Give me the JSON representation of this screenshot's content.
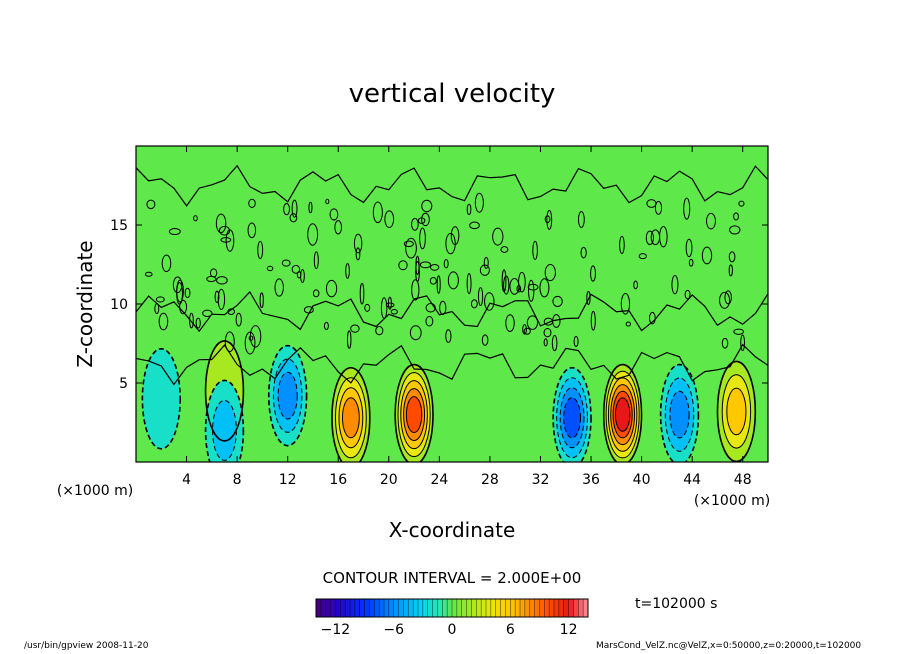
{
  "chart_data": {
    "type": "heatmap",
    "title": "vertical velocity",
    "xlabel": "X-coordinate",
    "ylabel": "Z-coordinate",
    "x_unit": "(×1000 m)",
    "xlim": [
      0,
      50
    ],
    "ylim": [
      0,
      20
    ],
    "x_ticks": [
      4,
      8,
      12,
      16,
      20,
      24,
      28,
      32,
      36,
      40,
      44,
      48
    ],
    "y_ticks": [
      5,
      10,
      15
    ],
    "contour_interval_label": "CONTOUR INTERVAL = 2.000E+00",
    "time_label": "t=102000 s",
    "colorbar": {
      "range": [
        -14,
        14
      ],
      "ticks": [
        -12,
        -6,
        0,
        6,
        12
      ],
      "tick_labels": [
        "−12",
        "−6",
        "0",
        "6",
        "12"
      ]
    },
    "cells": [
      {
        "x": 17,
        "z": 2.8,
        "value": 9,
        "kind": "updraft"
      },
      {
        "x": 22,
        "z": 3.0,
        "value": 10,
        "kind": "updraft"
      },
      {
        "x": 38.5,
        "z": 3.0,
        "value": 13,
        "kind": "updraft"
      },
      {
        "x": 47.5,
        "z": 3.2,
        "value": 7,
        "kind": "updraft"
      },
      {
        "x": 7,
        "z": 4.5,
        "value": 2,
        "kind": "updraft"
      },
      {
        "x": 12,
        "z": 4.2,
        "value": -6,
        "kind": "downdraft"
      },
      {
        "x": 34.5,
        "z": 2.8,
        "value": -8,
        "kind": "downdraft"
      },
      {
        "x": 43,
        "z": 3.0,
        "value": -7,
        "kind": "downdraft"
      },
      {
        "x": 7,
        "z": 2.0,
        "value": -4,
        "kind": "downdraft"
      },
      {
        "x": 2,
        "z": 4.0,
        "value": -3,
        "kind": "downdraft"
      }
    ]
  },
  "footer": {
    "left": "/usr/bin/gpview   2008-11-20",
    "right": "MarsCond_VelZ.nc@VelZ,x=0:50000,z=0:20000,t=102000"
  }
}
